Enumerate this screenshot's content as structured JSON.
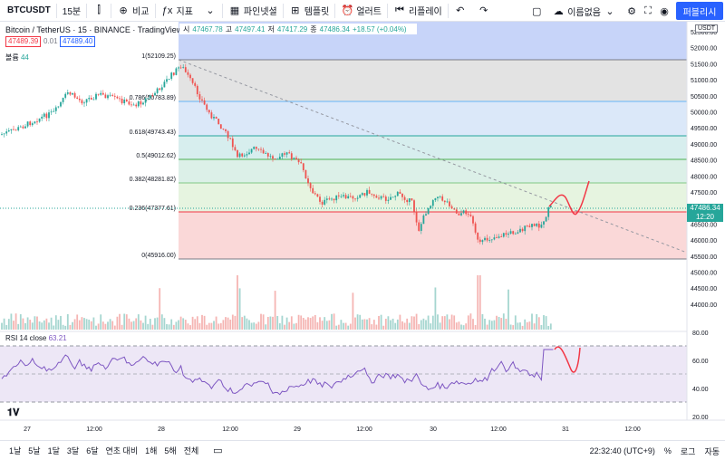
{
  "toolbar": {
    "symbol": "BTCUSDT",
    "interval": "15분",
    "compare": "비교",
    "indicators": "지표",
    "pine": "파인넷셜",
    "template": "템플릿",
    "alert": "얼러트",
    "replay": "리플레이",
    "layout_name": "이름없음",
    "publish": "퍼블리시"
  },
  "legend": {
    "title": "Bitcoin / TetherUS · 15 · BINANCE · TradingView",
    "o_label": "시",
    "o": "47467.78",
    "h_label": "고",
    "h": "47497.41",
    "l_label": "저",
    "l": "47417.29",
    "c_label": "종",
    "c": "47486.34",
    "change": "+18.57 (+0.04%)",
    "bid": "47489.39",
    "spread": "0.01",
    "ask": "47489.40",
    "volume_label": "볼륨",
    "volume_value": "44"
  },
  "rsi": {
    "label": "RSI 14 close",
    "value": "63.21"
  },
  "price_scale": {
    "currency": "USDT",
    "current_price": "47486.34",
    "countdown": "12:20",
    "ticks": [
      "52500.00",
      "52000.00",
      "51500.00",
      "51000.00",
      "50500.00",
      "50000.00",
      "49500.00",
      "49000.00",
      "48500.00",
      "48000.00",
      "47500.00",
      "47000.00",
      "46500.00",
      "46000.00",
      "45500.00",
      "45000.00",
      "44500.00",
      "44000.00"
    ],
    "rsi_ticks": [
      "80.00",
      "60.00",
      "40.00",
      "20.00"
    ]
  },
  "fib_labels": [
    "1(52109.25)",
    "0.786(50783.89)",
    "0.618(49743.43)",
    "0.5(49012.62)",
    "0.382(48281.82)",
    "0.236(47377.61)",
    "0(45916.00)"
  ],
  "time_axis": [
    "27",
    "12:00",
    "28",
    "12:00",
    "29",
    "12:00",
    "30",
    "12:00",
    "31",
    "12:00"
  ],
  "bottombar": {
    "ranges": [
      "1날",
      "5날",
      "1달",
      "3달",
      "6달",
      "연초 대비",
      "1해",
      "5해",
      "전체"
    ],
    "clock": "22:32:40 (UTC+9)",
    "percent": "%",
    "log": "로그",
    "auto": "자동"
  },
  "colors": {
    "up": "#26a69a",
    "down": "#ef5350",
    "accent": "#2962ff",
    "rsi": "#7e57c2",
    "projection": "#f23645"
  }
}
